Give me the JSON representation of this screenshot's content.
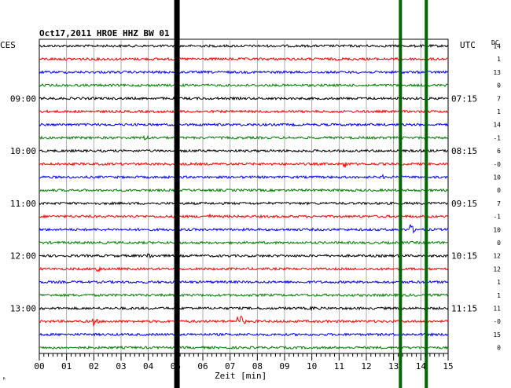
{
  "header": {
    "title": "Oct17,2011   HROE HHZ BW 01",
    "left_label": "CES",
    "right_label": "UTC",
    "dc_label": "DC"
  },
  "chart_data": {
    "type": "line",
    "title": "Oct17,2011   HROE HHZ BW 01",
    "xlabel": "Zeit [min]",
    "xlim": [
      0,
      15
    ],
    "x_ticks": [
      "00",
      "01",
      "02",
      "03",
      "04",
      "05",
      "06",
      "07",
      "08",
      "09",
      "10",
      "11",
      "12",
      "13",
      "14",
      "15"
    ],
    "traces_per_label": 4,
    "left_labels": [
      "09:00",
      "10:00",
      "11:00",
      "12:00",
      "13:00"
    ],
    "right_labels": [
      "07:15",
      "08:15",
      "09:15",
      "10:15",
      "11:15"
    ],
    "dc_values": [
      "14",
      "1",
      "13",
      "0",
      "7",
      "1",
      "14",
      "-1",
      "6",
      "-0",
      "10",
      "0",
      "7",
      "-1",
      "10",
      "0",
      "12",
      "12",
      "1",
      "1",
      "11",
      "-0",
      "15",
      "0"
    ],
    "trace_colors": [
      "#000000",
      "#ff0000",
      "#0000ff",
      "#008000"
    ],
    "grid": true,
    "marker_lines": [
      {
        "x_min": 5.05,
        "color": "#000000"
      },
      {
        "x_min": 13.25,
        "color": "#006400"
      },
      {
        "x_min": 14.2,
        "color": "#006400"
      }
    ],
    "events": [
      {
        "trace": 7,
        "x_min": 3.9,
        "amplitude": 5,
        "color": "#008000"
      },
      {
        "trace": 9,
        "x_min": 11.2,
        "amplitude": 6,
        "color": "#ff0000"
      },
      {
        "trace": 10,
        "x_min": 12.6,
        "amplitude": 3,
        "color": "#0000ff"
      },
      {
        "trace": 13,
        "x_min": 6.2,
        "amplitude": 4,
        "color": "#ff0000"
      },
      {
        "trace": 14,
        "x_min": 13.6,
        "amplitude": 8,
        "color": "#0000ff"
      },
      {
        "trace": 16,
        "x_min": 4.0,
        "amplitude": 5,
        "color": "#ff0000"
      },
      {
        "trace": 17,
        "x_min": 2.1,
        "amplitude": 6,
        "color": "#0000ff"
      },
      {
        "trace": 20,
        "x_min": 10.0,
        "amplitude": 4,
        "color": "#000000"
      },
      {
        "trace": 21,
        "x_min": 2.0,
        "amplitude": 6,
        "color": "#ff0000"
      },
      {
        "trace": 21,
        "x_min": 7.3,
        "amplitude": 13,
        "color": "#ff0000"
      }
    ]
  }
}
